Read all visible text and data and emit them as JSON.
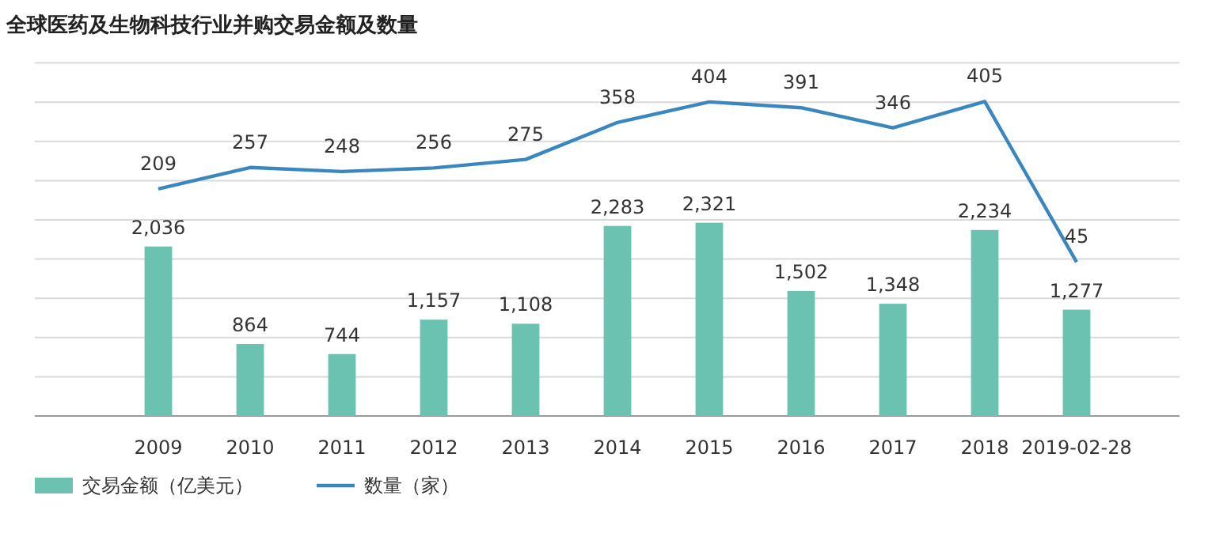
{
  "chart_data": {
    "type": "bar",
    "title": "全球医药及生物科技行业并购交易金额及数量",
    "categories": [
      "2009",
      "2010",
      "2011",
      "2012",
      "2013",
      "2014",
      "2015",
      "2016",
      "2017",
      "2018",
      "2019-02-28"
    ],
    "series": [
      {
        "name": "交易金额（亿美元）",
        "color": "#6cc2b0",
        "values": [
          2036,
          864,
          744,
          1157,
          1108,
          2283,
          2321,
          1502,
          1348,
          2234,
          1277
        ],
        "value_labels": [
          "2,036",
          "864",
          "744",
          "1,157",
          "1,108",
          "2,283",
          "2,321",
          "1,502",
          "1,348",
          "2,234",
          "1,277"
        ]
      },
      {
        "name": "数量（家）",
        "type": "line",
        "axis": "y2",
        "color": "#3a87c0",
        "values": [
          209,
          257,
          248,
          256,
          275,
          358,
          404,
          391,
          346,
          405,
          45
        ],
        "value_labels": [
          "209",
          "257",
          "248",
          "256",
          "275",
          "358",
          "404",
          "391",
          "346",
          "405",
          "45"
        ]
      }
    ],
    "grid": "y",
    "tick_labels": "x",
    "legend": "bottom left"
  }
}
